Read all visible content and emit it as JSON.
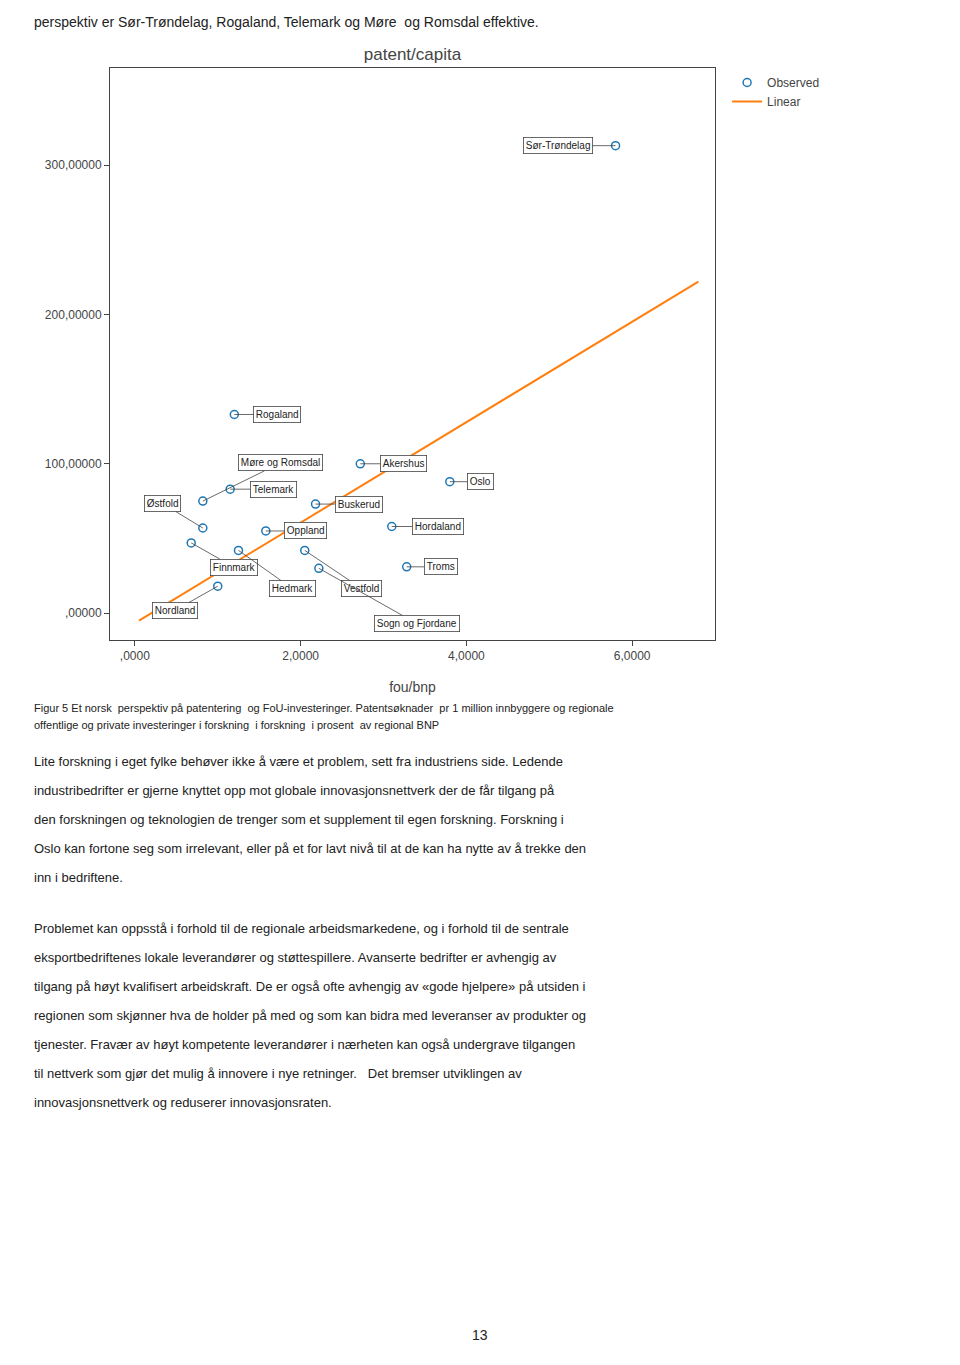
{
  "chart_data": {
    "type": "scatter",
    "title": "patent/capita",
    "xlabel": "fou/bnp",
    "xlim": [
      -0.3,
      7.0
    ],
    "ylim": [
      -18000,
      365000
    ],
    "xticks": [
      {
        "value": 0.0,
        "label": ",0000"
      },
      {
        "value": 2.0,
        "label": "2,0000"
      },
      {
        "value": 4.0,
        "label": "4,0000"
      },
      {
        "value": 6.0,
        "label": "6,0000"
      }
    ],
    "yticks": [
      {
        "value": 0.0,
        "label": ",00000"
      },
      {
        "value": 100000.0,
        "label": "100,00000"
      },
      {
        "value": 200000.0,
        "label": "200,00000"
      },
      {
        "value": 300000.0,
        "label": "300,00000"
      }
    ],
    "grid": false,
    "legend": "top right",
    "series": [
      {
        "name": "Observed",
        "type": "scatter",
        "marker": "circle-open",
        "x": [
          5.8,
          1.2,
          2.72,
          3.8,
          1.15,
          0.82,
          2.18,
          3.1,
          0.82,
          1.58,
          0.68,
          1.25,
          2.05,
          2.22,
          3.28,
          1.0
        ],
        "values": [
          313000,
          133000,
          100000,
          88000,
          83000,
          75000,
          73000,
          58000,
          57000,
          55000,
          47000,
          42000,
          42000,
          30000,
          31000,
          18000
        ],
        "labels": [
          "Sør-Trøndelag",
          "Rogaland",
          "Akershus",
          "Oslo",
          "Telemark",
          "Møre og Romsdal",
          "Buskerud",
          "Hordaland",
          "Østfold",
          "Oppland",
          "Finnmark",
          "Hedmark",
          "Vestfold",
          "Sogn og Fjordane",
          "Troms",
          "Nordland"
        ]
      },
      {
        "name": "Linear",
        "type": "line",
        "x": [
          0.05,
          6.8
        ],
        "values": [
          -5000,
          222000
        ]
      }
    ],
    "header": "perspektiv er Sør-Trøndelag, Rogaland, Telemark og Møre  og Romsdal effektive.",
    "caption": [
      "Figur 5 Et norsk  perspektiv på patentering  og FoU-investeringer. Patentsøknader  pr 1 million innbyggere og regionale",
      "offentlige og private investeringer i forskning  i forskning  i prosent  av regional BNP"
    ],
    "body": [
      [
        "Lite forskning i eget fylke behøver ikke å være et problem, sett fra industriens side. Ledende",
        "industribedrifter er gjerne knyttet opp mot globale innovasjonsnettverk der de får tilgang på",
        "den forskningen og teknologien de trenger som et supplement til egen forskning. Forskning i",
        "Oslo kan fortone seg som irrelevant, eller på et for lavt nivå til at de kan ha nytte av å trekke den",
        "inn i bedriftene."
      ],
      [
        "Problemet kan oppsstå i forhold til de regionale arbeidsmarkedene, og i forhold til de sentrale",
        "eksportbedriftenes lokale leverandører og støttespillere. Avanserte bedrifter er avhengig av",
        "tilgang på høyt kvalifisert arbeidskraft. De er også ofte avhengig av «gode hjelpere» på utsiden i",
        "regionen som skjønner hva de holder på med og som kan bidra med leveranser av produkter og",
        "tjenester. Fravær av høyt kompetente leverandører i nærheten kan også undergrave tilgangen",
        "til nettverk som gjør det mulig å innovere i nye retninger.   Det bremser utviklingen av",
        "innovasjonsnettverk og reduserer innovasjonsraten."
      ]
    ],
    "page_number": "13"
  }
}
